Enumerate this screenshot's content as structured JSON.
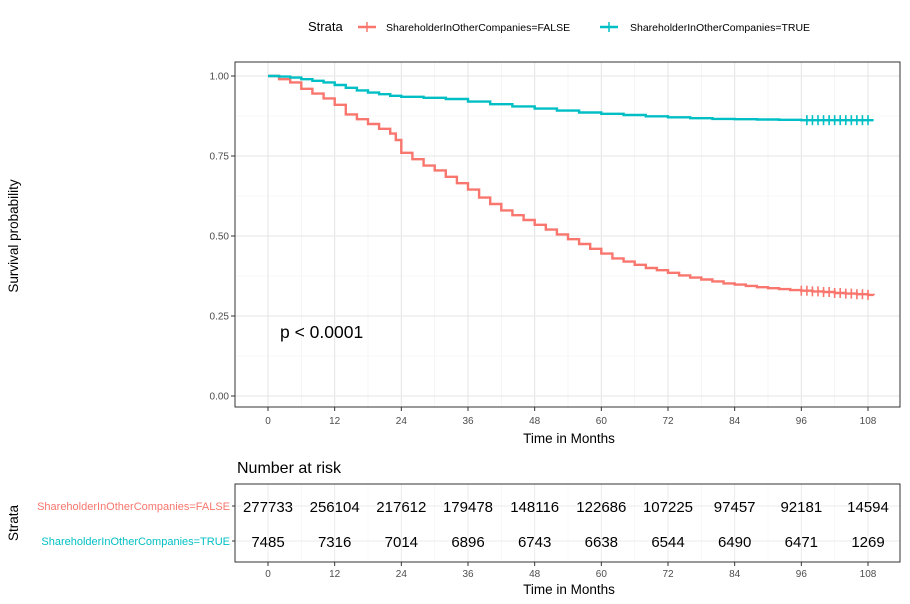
{
  "chart_data": {
    "type": "line",
    "legend": {
      "title": "Strata",
      "position": "top",
      "entries": [
        {
          "name": "ShareholderInOtherCompanies=FALSE",
          "color": "#F8766D"
        },
        {
          "name": "ShareholderInOtherCompanies=TRUE",
          "color": "#00BFC4"
        }
      ]
    },
    "xlabel": "Time in Months",
    "ylabel": "Survival probability",
    "xlim": [
      0,
      108
    ],
    "ylim": [
      0,
      1
    ],
    "grid": true,
    "x_ticks": [
      "0",
      "12",
      "24",
      "36",
      "48",
      "60",
      "72",
      "84",
      "96",
      "108"
    ],
    "y_ticks": [
      "0.00",
      "0.25",
      "0.50",
      "0.75",
      "1.00"
    ],
    "annotation": "p < 0.0001",
    "series": [
      {
        "name": "ShareholderInOtherCompanies=FALSE",
        "color": "#F8766D",
        "x": [
          0,
          2,
          4,
          6,
          8,
          10,
          12,
          14,
          16,
          18,
          20,
          22,
          23,
          24,
          26,
          28,
          30,
          32,
          34,
          36,
          38,
          40,
          42,
          44,
          46,
          48,
          50,
          52,
          54,
          56,
          58,
          60,
          62,
          64,
          66,
          68,
          70,
          72,
          74,
          76,
          78,
          80,
          82,
          84,
          86,
          88,
          90,
          92,
          94,
          96,
          98,
          100,
          102,
          104,
          106,
          108,
          109
        ],
        "y": [
          1.0,
          0.99,
          0.98,
          0.96,
          0.945,
          0.93,
          0.91,
          0.88,
          0.865,
          0.85,
          0.835,
          0.82,
          0.8,
          0.76,
          0.74,
          0.72,
          0.705,
          0.685,
          0.665,
          0.645,
          0.62,
          0.6,
          0.58,
          0.565,
          0.55,
          0.535,
          0.52,
          0.505,
          0.49,
          0.475,
          0.46,
          0.445,
          0.43,
          0.42,
          0.41,
          0.4,
          0.393,
          0.385,
          0.377,
          0.37,
          0.364,
          0.358,
          0.352,
          0.348,
          0.344,
          0.34,
          0.337,
          0.334,
          0.331,
          0.329,
          0.327,
          0.325,
          0.322,
          0.32,
          0.318,
          0.316,
          0.315
        ],
        "censor_x": [
          96,
          97,
          98,
          99,
          100,
          101,
          102,
          103,
          104,
          105,
          106,
          107,
          108
        ]
      },
      {
        "name": "ShareholderInOtherCompanies=TRUE",
        "color": "#00BFC4",
        "x": [
          0,
          2,
          4,
          6,
          8,
          10,
          12,
          14,
          16,
          18,
          20,
          22,
          24,
          28,
          32,
          36,
          40,
          44,
          48,
          52,
          56,
          60,
          64,
          68,
          72,
          76,
          80,
          84,
          88,
          92,
          96,
          100,
          104,
          108,
          109
        ],
        "y": [
          1.0,
          0.998,
          0.995,
          0.99,
          0.985,
          0.98,
          0.972,
          0.963,
          0.955,
          0.948,
          0.943,
          0.938,
          0.935,
          0.932,
          0.928,
          0.92,
          0.912,
          0.905,
          0.898,
          0.892,
          0.886,
          0.882,
          0.878,
          0.874,
          0.871,
          0.868,
          0.866,
          0.865,
          0.864,
          0.863,
          0.862,
          0.862,
          0.862,
          0.862,
          0.862
        ],
        "censor_x": [
          97,
          98,
          99,
          100,
          101,
          102,
          103,
          104,
          105,
          106,
          107,
          108
        ]
      }
    ],
    "risk_table": {
      "title": "Number at risk",
      "ylabel": "Strata",
      "xlabel": "Time in Months",
      "times": [
        "0",
        "12",
        "24",
        "36",
        "48",
        "60",
        "72",
        "84",
        "96",
        "108"
      ],
      "rows": [
        {
          "name": "ShareholderInOtherCompanies=FALSE",
          "color": "#F8766D",
          "counts": [
            "277733",
            "256104",
            "217612",
            "179478",
            "148116",
            "122686",
            "107225",
            "97457",
            "92181",
            "14594"
          ]
        },
        {
          "name": "ShareholderInOtherCompanies=TRUE",
          "color": "#00BFC4",
          "counts": [
            "7485",
            "7316",
            "7014",
            "6896",
            "6743",
            "6638",
            "6544",
            "6490",
            "6471",
            "1269"
          ]
        }
      ]
    }
  }
}
